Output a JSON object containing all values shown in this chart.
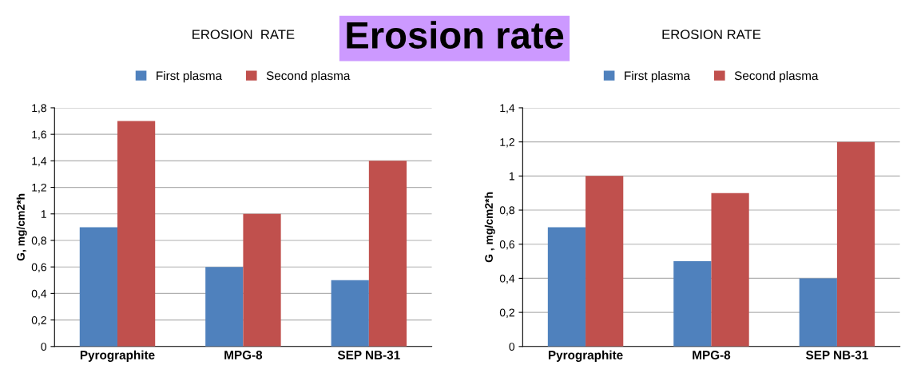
{
  "chart_data": [
    {
      "type": "bar",
      "title": "EROSION  RATE",
      "annotations": [
        "Erosion rate"
      ],
      "categories": [
        "Pyrographite",
        "MPG-8",
        "SEP NB-31"
      ],
      "ylabel": "G, mg/cm2*h",
      "series": [
        {
          "name": "First plasma",
          "color": "#4f81bd",
          "values": [
            0.9,
            0.6,
            0.5
          ]
        },
        {
          "name": "Second plasma",
          "color": "#c0504d",
          "values": [
            1.7,
            1.0,
            1.4
          ]
        }
      ],
      "ylim": [
        0,
        1.8
      ],
      "yticks": [
        0,
        {
          "value": 0.2,
          "label": "0,2"
        },
        {
          "value": 0.4,
          "label": "0,4"
        },
        {
          "value": 0.6,
          "label": "0,6"
        },
        {
          "value": 0.8,
          "label": "0,8"
        },
        1,
        {
          "value": 1.2,
          "label": "1,2"
        },
        {
          "value": 1.4,
          "label": "1,4"
        },
        {
          "value": 1.6,
          "label": "1,6"
        },
        {
          "value": 1.8,
          "label": "1,8"
        }
      ],
      "grid": "y",
      "legend": "top"
    },
    {
      "type": "bar",
      "title": "EROSION RATE",
      "categories": [
        "Pyrographite",
        "MPG-8",
        "SEP NB-31"
      ],
      "ylabel": "G , mg/cm2*h",
      "series": [
        {
          "name": "First plasma",
          "color": "#4f81bd",
          "values": [
            0.7,
            0.5,
            0.4
          ]
        },
        {
          "name": "Second plasma",
          "color": "#c0504d",
          "values": [
            1.0,
            0.9,
            1.2
          ]
        }
      ],
      "ylim": [
        0,
        1.4
      ],
      "yticks": [
        0,
        {
          "value": 0.2,
          "label": "0,2"
        },
        {
          "value": 0.4,
          "label": "0,4"
        },
        {
          "value": 0.6,
          "label": "0,6"
        },
        {
          "value": 0.8,
          "label": "0,8"
        },
        1,
        {
          "value": 1.2,
          "label": "1,2"
        },
        {
          "value": 1.4,
          "label": "1,4"
        }
      ],
      "grid": "y",
      "legend": "top"
    }
  ]
}
